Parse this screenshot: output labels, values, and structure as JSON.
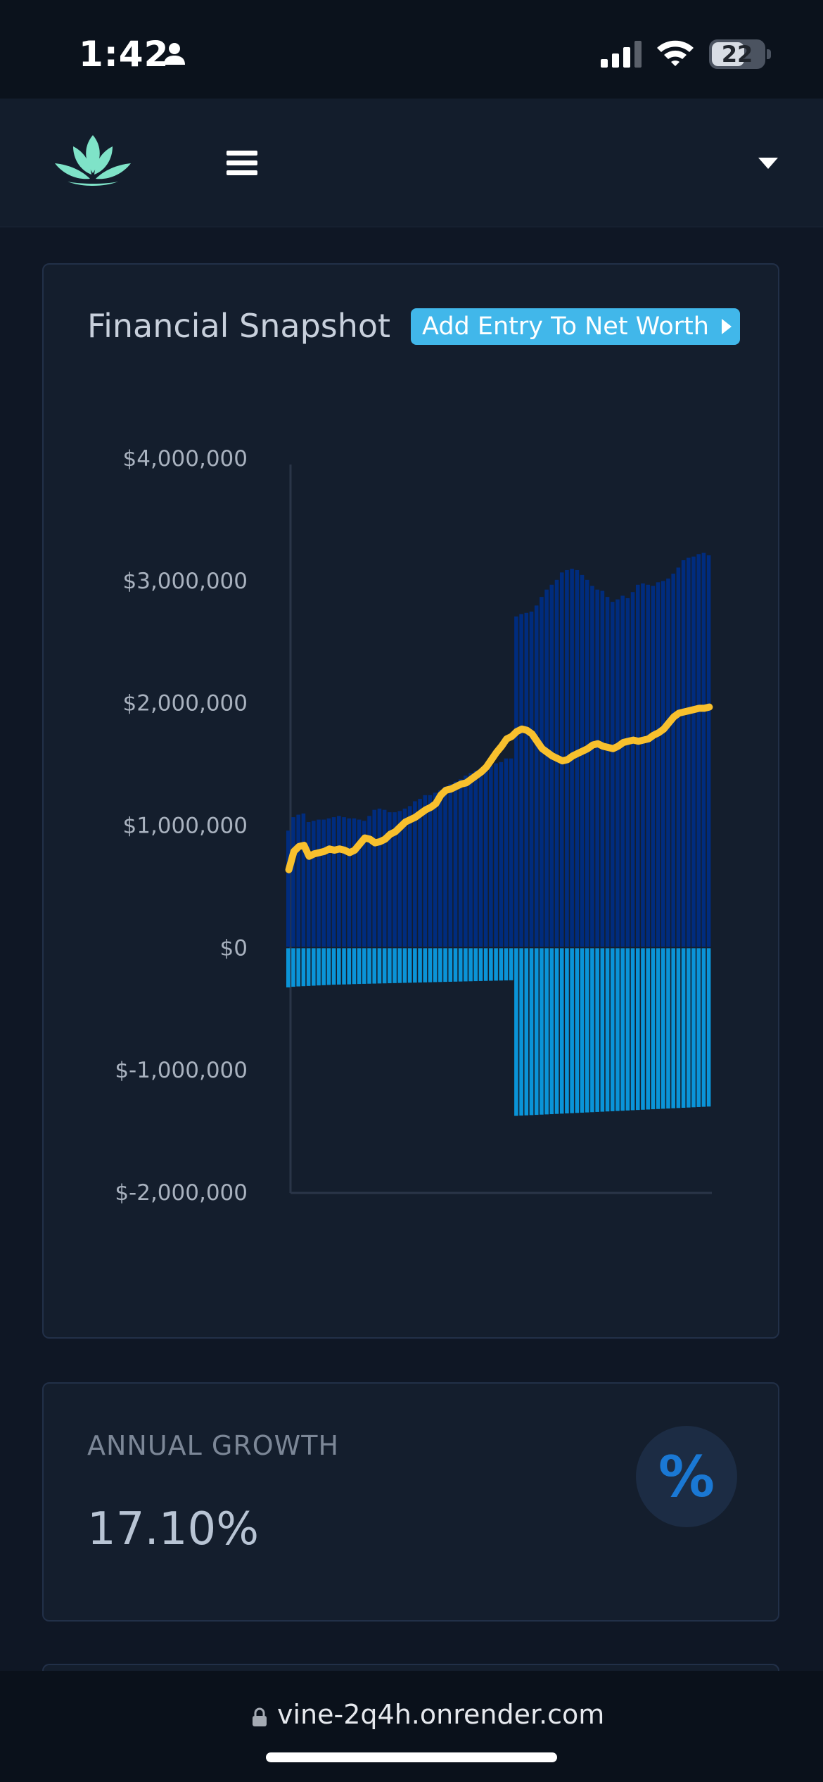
{
  "status_bar": {
    "time": "1:42",
    "battery": "22",
    "icons": [
      "person-icon",
      "signal-icon",
      "wifi-icon",
      "battery-icon"
    ]
  },
  "nav": {
    "logo_icon": "lotus-logo-icon",
    "menu_icon": "hamburger-menu-icon",
    "dropdown_icon": "caret-down-icon"
  },
  "snapshot": {
    "title": "Financial Snapshot",
    "add_entry_label": "Add Entry To Net Worth"
  },
  "chart_data": {
    "type": "bar",
    "title": "",
    "xlabel": "",
    "ylabel": "",
    "ylim": [
      -2000000,
      4000000
    ],
    "y_ticks": [
      "$4,000,000",
      "$3,000,000",
      "$2,000,000",
      "$1,000,000",
      "$0",
      "$-1,000,000",
      "$-2,000,000"
    ],
    "grid": false,
    "legend": "none",
    "colors": {
      "assets": "#002c7e",
      "liabilities": "#0a94d8",
      "net_worth": "#f8c02d"
    },
    "series": [
      {
        "type": "bar",
        "values": [
          950000,
          1060000,
          1080000,
          1090000,
          1020000,
          1030000,
          1040000,
          1040000,
          1050000,
          1060000,
          1070000,
          1060000,
          1050000,
          1050000,
          1040000,
          1030000,
          1070000,
          1120000,
          1130000,
          1120000,
          1100000,
          1100000,
          1110000,
          1130000,
          1150000,
          1190000,
          1210000,
          1240000,
          1240000,
          1260000,
          1280000,
          1310000,
          1330000,
          1350000,
          1370000,
          1400000,
          1420000,
          1440000,
          1460000,
          1470000,
          1480000,
          1500000,
          1510000,
          1540000,
          1540000,
          2700000,
          2720000,
          2730000,
          2740000,
          2790000,
          2860000,
          2920000,
          2960000,
          3000000,
          3060000,
          3080000,
          3090000,
          3080000,
          3040000,
          3000000,
          2950000,
          2920000,
          2910000,
          2860000,
          2820000,
          2840000,
          2870000,
          2850000,
          2900000,
          2960000,
          2970000,
          2960000,
          2950000,
          2980000,
          2990000,
          3010000,
          3050000,
          3100000,
          3160000,
          3180000,
          3190000,
          3210000,
          3220000,
          3200000
        ]
      },
      {
        "type": "bar",
        "values": [
          -320000,
          -315000,
          -312000,
          -310000,
          -308000,
          -306000,
          -304000,
          -302000,
          -300000,
          -298000,
          -297000,
          -296000,
          -295000,
          -293000,
          -292000,
          -291000,
          -290000,
          -289000,
          -288000,
          -287000,
          -286000,
          -285000,
          -284000,
          -283000,
          -282000,
          -281000,
          -280000,
          -279000,
          -278000,
          -277000,
          -276000,
          -275000,
          -274000,
          -273000,
          -272000,
          -271000,
          -270000,
          -269000,
          -268000,
          -267000,
          -266000,
          -265000,
          -264000,
          -263000,
          -262000,
          -1370000,
          -1368000,
          -1366000,
          -1364000,
          -1362000,
          -1360000,
          -1358000,
          -1356000,
          -1354000,
          -1352000,
          -1350000,
          -1348000,
          -1346000,
          -1344000,
          -1342000,
          -1340000,
          -1338000,
          -1336000,
          -1334000,
          -1332000,
          -1330000,
          -1328000,
          -1326000,
          -1324000,
          -1322000,
          -1320000,
          -1318000,
          -1316000,
          -1314000,
          -1312000,
          -1310000,
          -1308000,
          -1306000,
          -1304000,
          -1302000,
          -1300000,
          -1298000,
          -1296000,
          -1294000
        ]
      },
      {
        "type": "line",
        "values": [
          630000,
          780000,
          820000,
          830000,
          740000,
          760000,
          770000,
          780000,
          800000,
          790000,
          800000,
          790000,
          770000,
          790000,
          840000,
          890000,
          880000,
          850000,
          860000,
          880000,
          920000,
          940000,
          980000,
          1020000,
          1040000,
          1060000,
          1090000,
          1120000,
          1140000,
          1170000,
          1240000,
          1280000,
          1290000,
          1310000,
          1330000,
          1340000,
          1370000,
          1400000,
          1430000,
          1470000,
          1530000,
          1590000,
          1640000,
          1700000,
          1720000,
          1760000,
          1780000,
          1770000,
          1740000,
          1680000,
          1620000,
          1590000,
          1560000,
          1540000,
          1520000,
          1530000,
          1560000,
          1580000,
          1600000,
          1620000,
          1650000,
          1660000,
          1640000,
          1630000,
          1620000,
          1640000,
          1670000,
          1680000,
          1690000,
          1680000,
          1690000,
          1700000,
          1730000,
          1750000,
          1780000,
          1830000,
          1880000,
          1910000,
          1920000,
          1930000,
          1940000,
          1950000,
          1950000,
          1960000
        ]
      }
    ]
  },
  "growth": {
    "label": "ANNUAL GROWTH",
    "value": "17.10%",
    "icon": "percent-icon",
    "icon_glyph": "%"
  },
  "url_bar": {
    "url": "vine-2q4h.onrender.com",
    "icon": "lock-icon"
  }
}
